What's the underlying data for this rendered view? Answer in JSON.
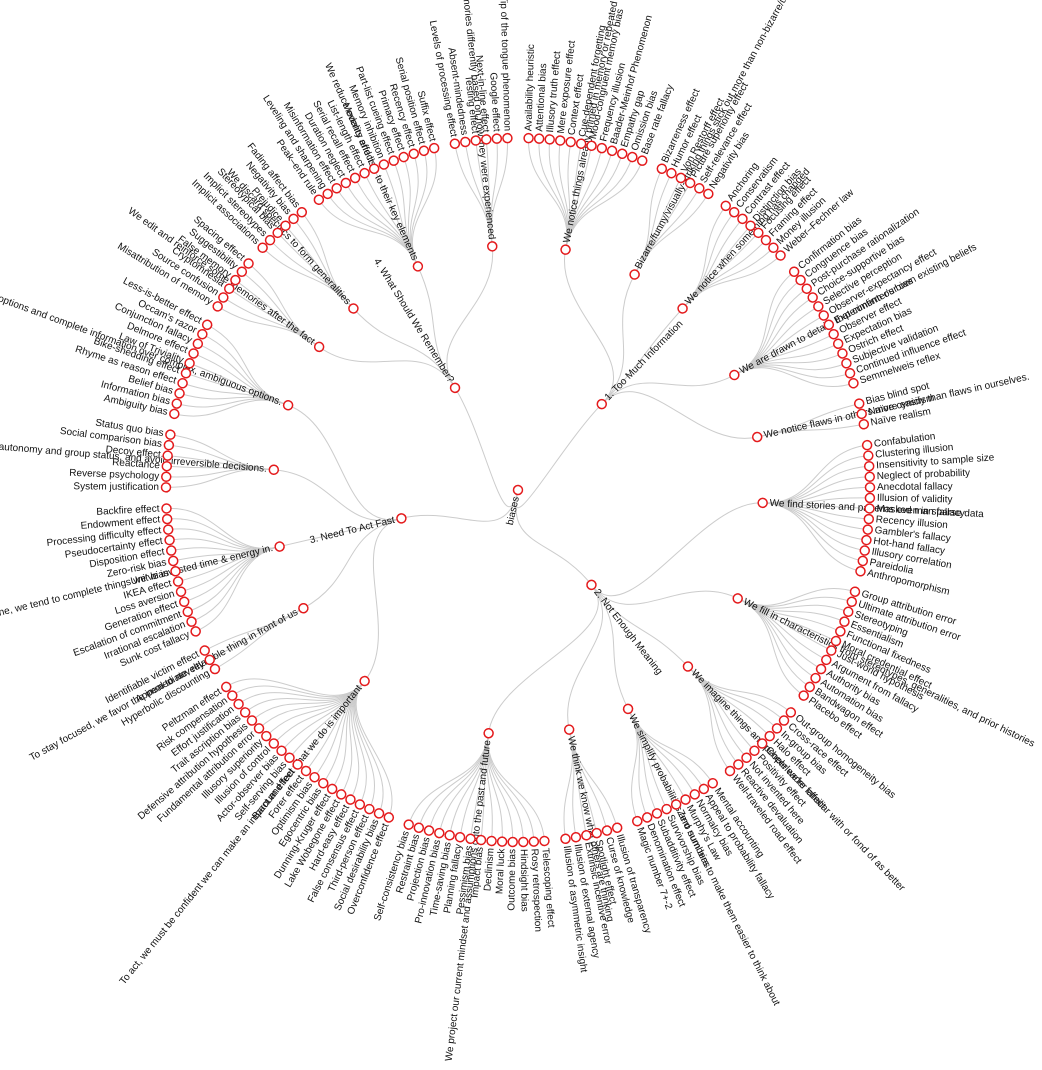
{
  "tree": {
    "name": "biases",
    "children": [
      {
        "name": "1. Too Much Information",
        "children": [
          {
            "name": "We notice things already primed in memory or repeated often",
            "children": [
              {
                "name": "Availability heuristic"
              },
              {
                "name": "Attentional bias"
              },
              {
                "name": "Illusory truth effect"
              },
              {
                "name": "Mere exposure effect"
              },
              {
                "name": "Context effect"
              },
              {
                "name": "Cue-dependent forgetting"
              },
              {
                "name": "Mood-congruent memory bias"
              },
              {
                "name": "Frequency illusion"
              },
              {
                "name": "Baader-Meinhof Phenomenon"
              },
              {
                "name": "Empathy gap"
              },
              {
                "name": "Omission bias"
              },
              {
                "name": "Base rate fallacy"
              }
            ]
          },
          {
            "name": "Bizarre/funny/visually-striking things stick out more than non-bizarre/unfunny things",
            "children": [
              {
                "name": "Bizarreness effect"
              },
              {
                "name": "Humor effect"
              },
              {
                "name": "Von Restorff effect"
              },
              {
                "name": "Picture superiority effect"
              },
              {
                "name": "Self-relevance effect"
              },
              {
                "name": "Negativity bias"
              }
            ]
          },
          {
            "name": "We notice when something has changed",
            "children": [
              {
                "name": "Anchoring"
              },
              {
                "name": "Conservatism"
              },
              {
                "name": "Contrast effect"
              },
              {
                "name": "Distinction bias"
              },
              {
                "name": "Focusing effect"
              },
              {
                "name": "Framing effect"
              },
              {
                "name": "Money illusion"
              },
              {
                "name": "Weber–Fechner law"
              }
            ]
          },
          {
            "name": "We are drawn to details that confirm our own existing beliefs",
            "children": [
              {
                "name": "Confirmation bias"
              },
              {
                "name": "Congruence bias"
              },
              {
                "name": "Post-purchase rationalization"
              },
              {
                "name": "Choice-supportive bias"
              },
              {
                "name": "Selective perception"
              },
              {
                "name": "Observer-expectancy effect"
              },
              {
                "name": "Experimenter's bias"
              },
              {
                "name": "Observer effect"
              },
              {
                "name": "Expectation bias"
              },
              {
                "name": "Ostrich effect"
              },
              {
                "name": "Subjective validation"
              },
              {
                "name": "Continued influence effect"
              },
              {
                "name": "Semmelweis reflex"
              }
            ]
          },
          {
            "name": "We notice flaws in others more easily than flaws in ourselves.",
            "children": [
              {
                "name": "Bias blind spot"
              },
              {
                "name": "Naïve cynicism"
              },
              {
                "name": "Naïve realism"
              }
            ]
          }
        ]
      },
      {
        "name": "2. Not Enough Meaning",
        "children": [
          {
            "name": "We find stories and patterns even in sparse data",
            "children": [
              {
                "name": "Confabulation"
              },
              {
                "name": "Clustering illusion"
              },
              {
                "name": "Insensitivity to sample size"
              },
              {
                "name": "Neglect of probability"
              },
              {
                "name": "Anecdotal fallacy"
              },
              {
                "name": "Illusion of validity"
              },
              {
                "name": "Masked man fallacy"
              },
              {
                "name": "Recency illusion"
              },
              {
                "name": "Gambler's fallacy"
              },
              {
                "name": "Hot-hand fallacy"
              },
              {
                "name": "Illusory correlation"
              },
              {
                "name": "Pareidolia"
              },
              {
                "name": "Anthropomorphism"
              }
            ]
          },
          {
            "name": "We fill in characteristics from stereotypes, generalities, and prior histories",
            "children": [
              {
                "name": "Group attribution error"
              },
              {
                "name": "Ultimate attribution error"
              },
              {
                "name": "Stereotyping"
              },
              {
                "name": "Essentialism"
              },
              {
                "name": "Functional fixedness"
              },
              {
                "name": "Moral credential effect"
              },
              {
                "name": "Just-world hypothesis"
              },
              {
                "name": "Argument from fallacy"
              },
              {
                "name": "Authority bias"
              },
              {
                "name": "Automation bias"
              },
              {
                "name": "Bandwagon effect"
              },
              {
                "name": "Placebo effect"
              }
            ]
          },
          {
            "name": "We imagine things and people we're familiar with or fond of as better",
            "children": [
              {
                "name": "Out-group homogeneity bias"
              },
              {
                "name": "Cross-race effect"
              },
              {
                "name": "In-group bias"
              },
              {
                "name": "Halo effect"
              },
              {
                "name": "Cheerleader effect"
              },
              {
                "name": "Positivity effect"
              },
              {
                "name": "Not invented here"
              },
              {
                "name": "Reactive devaluation"
              },
              {
                "name": "Well-traveled road effect"
              }
            ]
          },
          {
            "name": "We simplify probabilities and numbers to make them easier to think about",
            "children": [
              {
                "name": "Mental accounting"
              },
              {
                "name": "Appeal to probability fallacy"
              },
              {
                "name": "Normalcy bias"
              },
              {
                "name": "Murphy's Law"
              },
              {
                "name": "Zero sum bias"
              },
              {
                "name": "Survivorship bias"
              },
              {
                "name": "Subadditivity effect"
              },
              {
                "name": "Denomination effect"
              },
              {
                "name": "Magic number 7+-2"
              }
            ]
          },
          {
            "name": "We think we know what others are thinking",
            "children": [
              {
                "name": "Illusion of transparency"
              },
              {
                "name": "Curse of knowledge"
              },
              {
                "name": "Spotlight effect"
              },
              {
                "name": "Extrinsic incentive error"
              },
              {
                "name": "Illusion of external agency"
              },
              {
                "name": "Illusion of asymmetric insight"
              }
            ]
          },
          {
            "name": "We project our current mindset and assumptions onto the past and future",
            "children": [
              {
                "name": "Telescoping effect"
              },
              {
                "name": "Rosy retrospection"
              },
              {
                "name": "Hindsight bias"
              },
              {
                "name": "Outcome bias"
              },
              {
                "name": "Moral luck"
              },
              {
                "name": "Declinism"
              },
              {
                "name": "Impact bias"
              },
              {
                "name": "Pessimism bias"
              },
              {
                "name": "Planning fallacy"
              },
              {
                "name": "Time-saving bias"
              },
              {
                "name": "Pro-innovation bias"
              },
              {
                "name": "Projection bias"
              },
              {
                "name": "Restraint bias"
              },
              {
                "name": "Self-consistency bias"
              }
            ]
          }
        ]
      },
      {
        "name": "3. Need To Act Fast",
        "children": [
          {
            "name": "To act, we must be confident we can make an impact and feel what we do is important",
            "children": [
              {
                "name": "Overconfidence effect"
              },
              {
                "name": "Social desirability bias"
              },
              {
                "name": "Third-person effect"
              },
              {
                "name": "False consensus effect"
              },
              {
                "name": "Hard-easy effect"
              },
              {
                "name": "Lake Wobegone effect"
              },
              {
                "name": "Dunning-Kruger effect"
              },
              {
                "name": "Egocentric bias"
              },
              {
                "name": "Optimism bias"
              },
              {
                "name": "Forer effect"
              },
              {
                "name": "Barnum effect"
              },
              {
                "name": "Self-serving bias"
              },
              {
                "name": "Actor-observer bias"
              },
              {
                "name": "Illusion of control"
              },
              {
                "name": "Illusory superiority"
              },
              {
                "name": "Fundamental attribution error"
              },
              {
                "name": "Defensive attribution hypothesis"
              },
              {
                "name": "Trait ascription bias"
              },
              {
                "name": "Effort justification"
              },
              {
                "name": "Risk compensation"
              },
              {
                "name": "Peltzman effect"
              }
            ]
          },
          {
            "name": "To stay focused, we favor the immediate, relatable thing in front of us",
            "children": [
              {
                "name": "Hyperbolic discounting"
              },
              {
                "name": "Appeal to novelty"
              },
              {
                "name": "Identifiable victim effect"
              }
            ]
          },
          {
            "name": "To get things done, we tend to complete things we've invested time & energy in.",
            "children": [
              {
                "name": "Sunk cost fallacy"
              },
              {
                "name": "Irrational escalation"
              },
              {
                "name": "Escalation of commitment"
              },
              {
                "name": "Generation effect"
              },
              {
                "name": "Loss aversion"
              },
              {
                "name": "IKEA effect"
              },
              {
                "name": "Unit bias"
              },
              {
                "name": "Zero-risk bias"
              },
              {
                "name": "Disposition effect"
              },
              {
                "name": "Pseudocertainty effect"
              },
              {
                "name": "Processing difficulty effect"
              },
              {
                "name": "Endowment effect"
              },
              {
                "name": "Backfire effect"
              }
            ]
          },
          {
            "name": "To avoid mistakes, we aim to preserve autonomy and group status, and avoid irreversible decisions.",
            "children": [
              {
                "name": "System justification"
              },
              {
                "name": "Reverse psychology"
              },
              {
                "name": "Reactance"
              },
              {
                "name": "Decoy effect"
              },
              {
                "name": "Social comparison bias"
              },
              {
                "name": "Status quo bias"
              }
            ]
          },
          {
            "name": "We favor simple-looking options and complete information over complex, ambiguous options.",
            "children": [
              {
                "name": "Ambiguity bias"
              },
              {
                "name": "Information bias"
              },
              {
                "name": "Belief bias"
              },
              {
                "name": "Rhyme as reason effect"
              },
              {
                "name": "Bike-shedding effect"
              },
              {
                "name": "Law of Triviality"
              },
              {
                "name": "Delmore effect"
              },
              {
                "name": "Conjunction fallacy"
              },
              {
                "name": "Occam's razor"
              },
              {
                "name": "Less-is-better effect"
              }
            ]
          }
        ]
      },
      {
        "name": "4. What Should We Remember?",
        "children": [
          {
            "name": "We edit and reinforce some memories after the fact",
            "children": [
              {
                "name": "Misattribution of memory"
              },
              {
                "name": "Source confusion"
              },
              {
                "name": "Cryptomnesia"
              },
              {
                "name": "False memory"
              },
              {
                "name": "Suggestibility"
              },
              {
                "name": "Spacing effect"
              }
            ]
          },
          {
            "name": "We discard specifics to form generalities",
            "children": [
              {
                "name": "Implicit associations"
              },
              {
                "name": "Implicit stereotypes"
              },
              {
                "name": "Stereotypical bias"
              },
              {
                "name": "Prejudice"
              },
              {
                "name": "Negativity bias"
              },
              {
                "name": "Fading affect bias"
              }
            ]
          },
          {
            "name": "We reduce events and lists to their key elements",
            "children": [
              {
                "name": "Peak–end rule"
              },
              {
                "name": "Leveling and sharpening"
              },
              {
                "name": "Misinformation effect"
              },
              {
                "name": "Duration neglect"
              },
              {
                "name": "Serial recall effect"
              },
              {
                "name": "List-length effect"
              },
              {
                "name": "Modality effect"
              },
              {
                "name": "Memory inhibition"
              },
              {
                "name": "Part-list cueing effect"
              },
              {
                "name": "Primacy effect"
              },
              {
                "name": "Recency effect"
              },
              {
                "name": "Serial position effect"
              },
              {
                "name": "Suffix effect"
              }
            ]
          },
          {
            "name": "We store memories differently based on how they were experienced",
            "children": [
              {
                "name": "Levels of processing effect"
              },
              {
                "name": "Absent-mindedness"
              },
              {
                "name": "Testing effect"
              },
              {
                "name": "Next-in-line effect"
              },
              {
                "name": "Google effect"
              },
              {
                "name": "Tip of the tongue phenomenon"
              }
            ]
          }
        ]
      }
    ]
  }
}
